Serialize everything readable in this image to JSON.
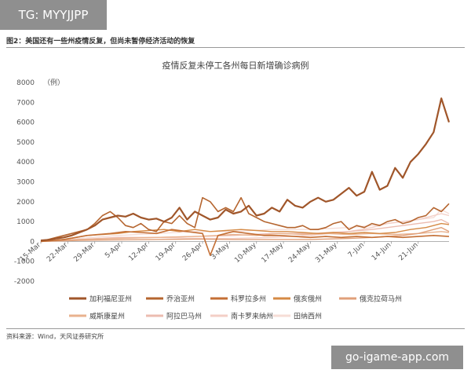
{
  "watermark_top": "TG: MYYJJPP",
  "figure_title": "图2：美国还有一些州疫情反复，但尚未暂停经济活动的恢复",
  "source": "资料来源：Wind，天风证券研究所",
  "watermark_bottom": "go-igame-app.com",
  "chart_data": {
    "type": "line",
    "title": "疫情反复未停工各州每日新增确诊病例",
    "ylabel": "（例）",
    "ylim": [
      -2000,
      8000
    ],
    "yticks": [
      -2000,
      -1000,
      0,
      1000,
      2000,
      3000,
      4000,
      5000,
      6000,
      7000,
      8000
    ],
    "x_start": "15-Mar",
    "x_end": "27-Jun",
    "xticks": [
      "15-Mar",
      "22-Mar",
      "29-Mar",
      "5-Apr",
      "12-Apr",
      "19-Apr",
      "26-Apr",
      "3-May",
      "10-May",
      "17-May",
      "24-May",
      "31-May",
      "7-Jun",
      "14-Jun",
      "21-Jun"
    ],
    "legend_position": "bottom",
    "series": [
      {
        "name": "加利福尼亚州",
        "color": "#a0562a",
        "width": 2.2,
        "values": [
          [
            0,
            50
          ],
          [
            2,
            80
          ],
          [
            4,
            150
          ],
          [
            6,
            200
          ],
          [
            8,
            300
          ],
          [
            10,
            450
          ],
          [
            12,
            600
          ],
          [
            14,
            800
          ],
          [
            16,
            1100
          ],
          [
            18,
            1200
          ],
          [
            20,
            1300
          ],
          [
            22,
            1250
          ],
          [
            24,
            1400
          ],
          [
            26,
            1200
          ],
          [
            28,
            1100
          ],
          [
            30,
            1150
          ],
          [
            32,
            1000
          ],
          [
            34,
            1200
          ],
          [
            36,
            1700
          ],
          [
            38,
            1100
          ],
          [
            40,
            1500
          ],
          [
            42,
            1300
          ],
          [
            44,
            1100
          ],
          [
            46,
            1200
          ],
          [
            48,
            1600
          ],
          [
            50,
            1400
          ],
          [
            52,
            1500
          ],
          [
            54,
            1800
          ],
          [
            56,
            1300
          ],
          [
            58,
            1400
          ],
          [
            60,
            1700
          ],
          [
            62,
            1500
          ],
          [
            64,
            2100
          ],
          [
            66,
            1800
          ],
          [
            68,
            1700
          ],
          [
            70,
            2000
          ],
          [
            72,
            2200
          ],
          [
            74,
            2000
          ],
          [
            76,
            2100
          ],
          [
            78,
            2400
          ],
          [
            80,
            2700
          ],
          [
            82,
            2300
          ],
          [
            84,
            2500
          ],
          [
            86,
            3500
          ],
          [
            88,
            2600
          ],
          [
            90,
            2800
          ],
          [
            92,
            3700
          ],
          [
            94,
            3200
          ],
          [
            96,
            4000
          ],
          [
            98,
            4400
          ],
          [
            100,
            4900
          ],
          [
            102,
            5500
          ],
          [
            104,
            7200
          ],
          [
            106,
            6000
          ]
        ]
      },
      {
        "name": "乔治亚州",
        "color": "#b5652f",
        "width": 1.6,
        "values": [
          [
            0,
            0
          ],
          [
            4,
            200
          ],
          [
            8,
            400
          ],
          [
            12,
            600
          ],
          [
            14,
            900
          ],
          [
            16,
            1300
          ],
          [
            18,
            1500
          ],
          [
            20,
            1200
          ],
          [
            22,
            800
          ],
          [
            24,
            700
          ],
          [
            26,
            900
          ],
          [
            28,
            600
          ],
          [
            30,
            500
          ],
          [
            32,
            1000
          ],
          [
            34,
            900
          ],
          [
            36,
            1300
          ],
          [
            38,
            900
          ],
          [
            40,
            700
          ],
          [
            42,
            2200
          ],
          [
            44,
            2000
          ],
          [
            46,
            1500
          ],
          [
            48,
            1700
          ],
          [
            50,
            1500
          ],
          [
            52,
            2200
          ],
          [
            54,
            1400
          ],
          [
            56,
            1200
          ],
          [
            58,
            1000
          ],
          [
            60,
            900
          ],
          [
            62,
            800
          ],
          [
            64,
            700
          ],
          [
            66,
            700
          ],
          [
            68,
            800
          ],
          [
            70,
            600
          ],
          [
            72,
            600
          ],
          [
            74,
            700
          ],
          [
            76,
            900
          ],
          [
            78,
            1000
          ],
          [
            80,
            600
          ],
          [
            82,
            800
          ],
          [
            84,
            700
          ],
          [
            86,
            900
          ],
          [
            88,
            800
          ],
          [
            90,
            1000
          ],
          [
            92,
            1100
          ],
          [
            94,
            900
          ],
          [
            96,
            1000
          ],
          [
            98,
            1200
          ],
          [
            100,
            1300
          ],
          [
            102,
            1700
          ],
          [
            104,
            1500
          ],
          [
            106,
            1900
          ]
        ]
      },
      {
        "name": "科罗拉多州",
        "color": "#c46f35",
        "width": 1.6,
        "values": [
          [
            0,
            0
          ],
          [
            6,
            100
          ],
          [
            12,
            300
          ],
          [
            18,
            400
          ],
          [
            22,
            500
          ],
          [
            26,
            450
          ],
          [
            30,
            400
          ],
          [
            34,
            600
          ],
          [
            38,
            500
          ],
          [
            42,
            400
          ],
          [
            44,
            -700
          ],
          [
            46,
            300
          ],
          [
            50,
            500
          ],
          [
            54,
            400
          ],
          [
            58,
            300
          ],
          [
            62,
            300
          ],
          [
            66,
            250
          ],
          [
            70,
            200
          ],
          [
            74,
            250
          ],
          [
            78,
            200
          ],
          [
            82,
            250
          ],
          [
            86,
            200
          ],
          [
            90,
            250
          ],
          [
            94,
            200
          ],
          [
            98,
            250
          ],
          [
            102,
            300
          ],
          [
            106,
            250
          ]
        ]
      },
      {
        "name": "俄亥俄州",
        "color": "#d58a45",
        "width": 1.4,
        "values": [
          [
            0,
            0
          ],
          [
            6,
            100
          ],
          [
            12,
            300
          ],
          [
            16,
            350
          ],
          [
            20,
            400
          ],
          [
            24,
            500
          ],
          [
            28,
            550
          ],
          [
            32,
            600
          ],
          [
            36,
            500
          ],
          [
            40,
            600
          ],
          [
            44,
            500
          ],
          [
            48,
            550
          ],
          [
            52,
            600
          ],
          [
            56,
            550
          ],
          [
            60,
            500
          ],
          [
            64,
            500
          ],
          [
            68,
            450
          ],
          [
            72,
            400
          ],
          [
            76,
            450
          ],
          [
            80,
            400
          ],
          [
            84,
            450
          ],
          [
            88,
            400
          ],
          [
            92,
            450
          ],
          [
            96,
            600
          ],
          [
            100,
            700
          ],
          [
            104,
            900
          ],
          [
            106,
            850
          ]
        ]
      },
      {
        "name": "俄克拉荷马州",
        "color": "#e0a07a",
        "width": 1.4,
        "values": [
          [
            0,
            0
          ],
          [
            10,
            50
          ],
          [
            20,
            80
          ],
          [
            30,
            100
          ],
          [
            40,
            120
          ],
          [
            50,
            100
          ],
          [
            60,
            100
          ],
          [
            70,
            100
          ],
          [
            80,
            150
          ],
          [
            86,
            200
          ],
          [
            90,
            250
          ],
          [
            94,
            300
          ],
          [
            98,
            400
          ],
          [
            102,
            600
          ],
          [
            104,
            700
          ],
          [
            106,
            500
          ]
        ]
      },
      {
        "name": "威斯康星州",
        "color": "#e9b28e",
        "width": 1.4,
        "values": [
          [
            0,
            0
          ],
          [
            10,
            100
          ],
          [
            20,
            150
          ],
          [
            30,
            200
          ],
          [
            40,
            250
          ],
          [
            46,
            300
          ],
          [
            50,
            350
          ],
          [
            56,
            300
          ],
          [
            62,
            400
          ],
          [
            68,
            350
          ],
          [
            74,
            400
          ],
          [
            80,
            350
          ],
          [
            86,
            400
          ],
          [
            92,
            350
          ],
          [
            98,
            400
          ],
          [
            104,
            500
          ],
          [
            106,
            450
          ]
        ]
      },
      {
        "name": "阿拉巴马州",
        "color": "#ecbcb0",
        "width": 1.4,
        "values": [
          [
            0,
            0
          ],
          [
            10,
            100
          ],
          [
            20,
            200
          ],
          [
            30,
            200
          ],
          [
            40,
            250
          ],
          [
            50,
            300
          ],
          [
            60,
            400
          ],
          [
            70,
            400
          ],
          [
            80,
            500
          ],
          [
            86,
            600
          ],
          [
            90,
            700
          ],
          [
            94,
            800
          ],
          [
            98,
            900
          ],
          [
            102,
            1000
          ],
          [
            104,
            1100
          ],
          [
            106,
            900
          ]
        ]
      },
      {
        "name": "南卡罗来纳州",
        "color": "#f3cfc6",
        "width": 1.4,
        "values": [
          [
            0,
            0
          ],
          [
            10,
            100
          ],
          [
            20,
            150
          ],
          [
            30,
            200
          ],
          [
            40,
            150
          ],
          [
            50,
            150
          ],
          [
            60,
            200
          ],
          [
            70,
            300
          ],
          [
            80,
            500
          ],
          [
            86,
            700
          ],
          [
            90,
            900
          ],
          [
            94,
            1000
          ],
          [
            98,
            1100
          ],
          [
            102,
            1300
          ],
          [
            104,
            1400
          ],
          [
            106,
            1300
          ]
        ]
      },
      {
        "name": "田纳西州",
        "color": "#f6ddd6",
        "width": 1.4,
        "values": [
          [
            0,
            0
          ],
          [
            10,
            150
          ],
          [
            20,
            300
          ],
          [
            30,
            400
          ],
          [
            40,
            500
          ],
          [
            50,
            500
          ],
          [
            60,
            600
          ],
          [
            70,
            600
          ],
          [
            80,
            700
          ],
          [
            86,
            800
          ],
          [
            90,
            900
          ],
          [
            94,
            1000
          ],
          [
            98,
            1100
          ],
          [
            102,
            1200
          ],
          [
            104,
            1600
          ],
          [
            106,
            1400
          ]
        ]
      }
    ]
  }
}
